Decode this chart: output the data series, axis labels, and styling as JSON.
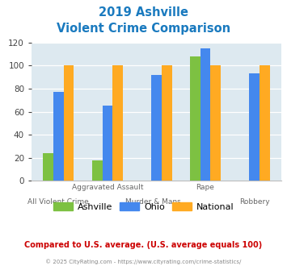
{
  "title_line1": "2019 Ashville",
  "title_line2": "Violent Crime Comparison",
  "title_color": "#1a7abf",
  "series_names": [
    "Ashville",
    "Ohio",
    "National"
  ],
  "series_colors": [
    "#7dc142",
    "#4488ee",
    "#ffaa22"
  ],
  "ashville_values": [
    24,
    18,
    null,
    108,
    null
  ],
  "ohio_values": [
    77,
    65,
    92,
    115,
    93
  ],
  "national_values": [
    100,
    100,
    100,
    100,
    100
  ],
  "n_cats": 5,
  "top_labels": [
    "",
    "Aggravated Assault",
    "",
    "Rape",
    ""
  ],
  "bottom_labels": [
    "All Violent Crime",
    "",
    "Murder & Mans...",
    "",
    "Robbery"
  ],
  "ylim": [
    0,
    120
  ],
  "yticks": [
    0,
    20,
    40,
    60,
    80,
    100,
    120
  ],
  "plot_bg_color": "#dde9f0",
  "footer_text": "Compared to U.S. average. (U.S. average equals 100)",
  "footer_color": "#cc0000",
  "copyright_text": "© 2025 CityRating.com - https://www.cityrating.com/crime-statistics/",
  "copyright_color": "#888888",
  "legend_labels": [
    "Ashville",
    "Ohio",
    "National"
  ],
  "legend_colors": [
    "#7dc142",
    "#4488ee",
    "#ffaa22"
  ]
}
